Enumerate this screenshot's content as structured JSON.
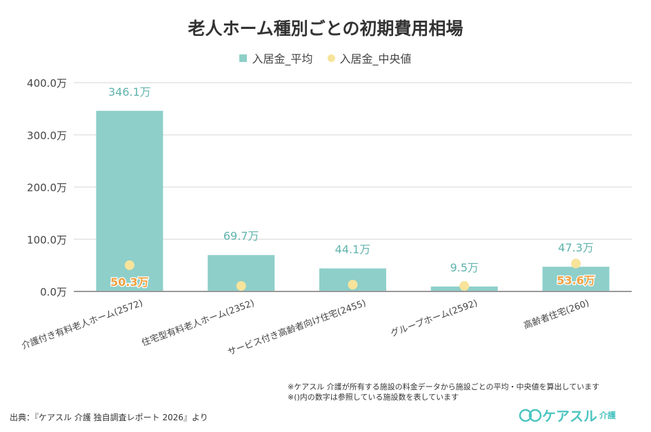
{
  "chart_data": {
    "type": "bar",
    "title": "老人ホーム種別ごとの初期費用相場",
    "categories": [
      "介護付き有料老人ホーム(2572)",
      "住宅型有料老人ホーム(2352)",
      "サービス付き高齢者向け住宅(2455)",
      "グループホーム(2592)",
      "高齢者住宅(260)"
    ],
    "series": [
      {
        "name": "入居金_平均",
        "kind": "bar",
        "color": "#8ecfca",
        "values": [
          346.1,
          69.7,
          44.1,
          9.5,
          47.3
        ],
        "labels": [
          "346.1万",
          "69.7万",
          "44.1万",
          "9.5万",
          "47.3万"
        ]
      },
      {
        "name": "入居金_中央値",
        "kind": "scatter",
        "color": "#f7e49a",
        "values": [
          50.3,
          10.5,
          13,
          10.5,
          53.6
        ],
        "labels": [
          "50.3万",
          "",
          "",
          "",
          "53.6万"
        ]
      }
    ],
    "yticks": [
      "0.0万",
      "100.0万",
      "200.0万",
      "300.0万",
      "400.0万"
    ],
    "ylim": [
      0,
      400
    ],
    "grid": true,
    "legend": "top-center"
  },
  "notes": [
    "※ケアスル 介護が所有する施設の料金データから施設ごとの平均・中央値を算出しています",
    "※()内の数字は参照している施設数を表しています"
  ],
  "source": "出典：『ケアスル 介護 独自調査レポート 2026』より",
  "logo": {
    "text": "ケアスル",
    "sub": "介護"
  }
}
